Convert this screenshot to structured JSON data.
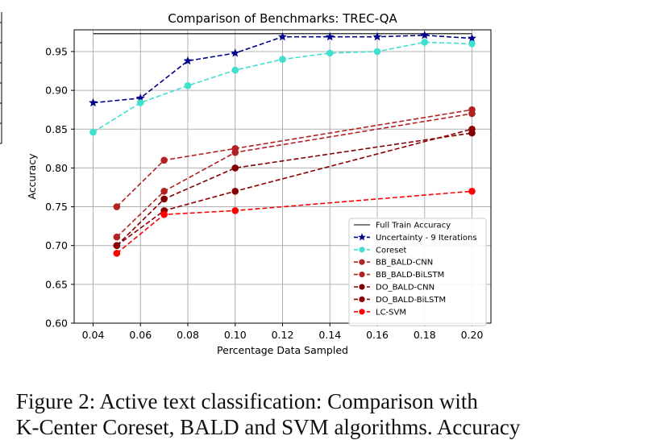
{
  "chart_data": {
    "type": "line",
    "title": "Comparison of Benchmarks: TREC-QA",
    "xlabel": "Percentage Data Sampled",
    "ylabel": "Accuracy",
    "xlim": [
      0.032,
      0.208
    ],
    "ylim": [
      0.6,
      0.978
    ],
    "xticks": [
      "0.04",
      "0.06",
      "0.08",
      "0.10",
      "0.12",
      "0.14",
      "0.16",
      "0.18",
      "0.20"
    ],
    "yticks": [
      "0.60",
      "0.65",
      "0.70",
      "0.75",
      "0.80",
      "0.85",
      "0.90",
      "0.95"
    ],
    "grid": true,
    "legend_position": "lower-right",
    "series": [
      {
        "name": "Full Train Accuracy",
        "color": "#000000",
        "style": "solid",
        "marker": "none",
        "x": [
          0.04,
          0.2
        ],
        "y": [
          0.973,
          0.973
        ]
      },
      {
        "name": "Uncertainty - 9 Iterations",
        "color": "#00008b",
        "style": "dashed",
        "marker": "star",
        "x": [
          0.04,
          0.06,
          0.08,
          0.1,
          0.12,
          0.14,
          0.16,
          0.18,
          0.2
        ],
        "y": [
          0.884,
          0.89,
          0.938,
          0.948,
          0.969,
          0.969,
          0.969,
          0.971,
          0.967
        ]
      },
      {
        "name": "Coreset",
        "color": "#40e0d0",
        "style": "dashed",
        "marker": "circle",
        "x": [
          0.04,
          0.06,
          0.08,
          0.1,
          0.12,
          0.14,
          0.16,
          0.18,
          0.2
        ],
        "y": [
          0.846,
          0.884,
          0.906,
          0.926,
          0.94,
          0.948,
          0.95,
          0.962,
          0.96
        ]
      },
      {
        "name": "BB_BALD-CNN",
        "color": "#b22222",
        "style": "dashed",
        "marker": "circle",
        "x": [
          0.05,
          0.07,
          0.1,
          0.2
        ],
        "y": [
          0.75,
          0.81,
          0.825,
          0.875
        ]
      },
      {
        "name": "BB_BALD-BiLSTM",
        "color": "#b22222",
        "style": "dashed",
        "marker": "circle",
        "x": [
          0.05,
          0.07,
          0.1,
          0.2
        ],
        "y": [
          0.711,
          0.77,
          0.82,
          0.87
        ]
      },
      {
        "name": "DO_BALD-CNN",
        "color": "#800000",
        "style": "dashed",
        "marker": "circle",
        "x": [
          0.05,
          0.07,
          0.1,
          0.2
        ],
        "y": [
          0.7,
          0.76,
          0.8,
          0.845
        ]
      },
      {
        "name": "DO_BALD-BiLSTM",
        "color": "#8b0000",
        "style": "dashed",
        "marker": "circle",
        "x": [
          0.05,
          0.07,
          0.1,
          0.2
        ],
        "y": [
          0.7,
          0.745,
          0.77,
          0.85
        ]
      },
      {
        "name": "LC-SVM",
        "color": "#ff0000",
        "style": "dashed",
        "marker": "circle",
        "x": [
          0.05,
          0.07,
          0.1,
          0.2
        ],
        "y": [
          0.69,
          0.74,
          0.745,
          0.77
        ]
      }
    ]
  },
  "caption": {
    "line1": "Figure 2:  Active text classification: Comparison with",
    "line2": "K-Center Coreset, BALD and SVM algorithms. Accuracy"
  }
}
